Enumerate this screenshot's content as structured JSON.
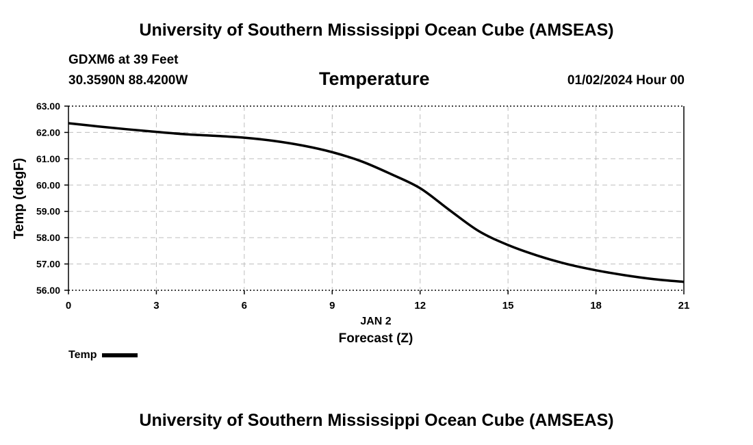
{
  "header": {
    "title": "University of Southern Mississippi Ocean Cube (AMSEAS)",
    "station": "GDXM6 at 39 Feet",
    "coords": "30.3590N  88.4200W",
    "parameter": "Temperature",
    "datetime": "01/02/2024 Hour 00"
  },
  "footer": {
    "title": "University of Southern Mississippi Ocean Cube (AMSEAS)"
  },
  "legend": {
    "label": "Temp"
  },
  "chart_data": {
    "type": "line",
    "title": "Temperature",
    "xlabel": "Forecast (Z)",
    "xdate_label": "JAN 2",
    "ylabel": "Temp (degF)",
    "xlim": [
      0,
      21
    ],
    "ylim": [
      56,
      63
    ],
    "xticks": [
      0,
      3,
      6,
      9,
      12,
      15,
      18,
      21
    ],
    "xtick_labels": [
      "0",
      "3",
      "6",
      "9",
      "12",
      "15",
      "18",
      "21"
    ],
    "yticks": [
      56,
      57,
      58,
      59,
      60,
      61,
      62,
      63
    ],
    "ytick_labels": [
      "56.00",
      "57.00",
      "58.00",
      "59.00",
      "60.00",
      "61.00",
      "62.00",
      "63.00"
    ],
    "grid": true,
    "series": [
      {
        "name": "Temp",
        "color": "#000000",
        "x": [
          0,
          1,
          2,
          3,
          4,
          5,
          6,
          7,
          8,
          9,
          10,
          11,
          12,
          13,
          14,
          15,
          16,
          17,
          18,
          19,
          20,
          21
        ],
        "y": [
          62.35,
          62.23,
          62.12,
          62.02,
          61.93,
          61.87,
          61.8,
          61.68,
          61.5,
          61.25,
          60.9,
          60.42,
          59.88,
          59.05,
          58.25,
          57.72,
          57.32,
          57.0,
          56.76,
          56.57,
          56.42,
          56.32
        ]
      }
    ]
  }
}
